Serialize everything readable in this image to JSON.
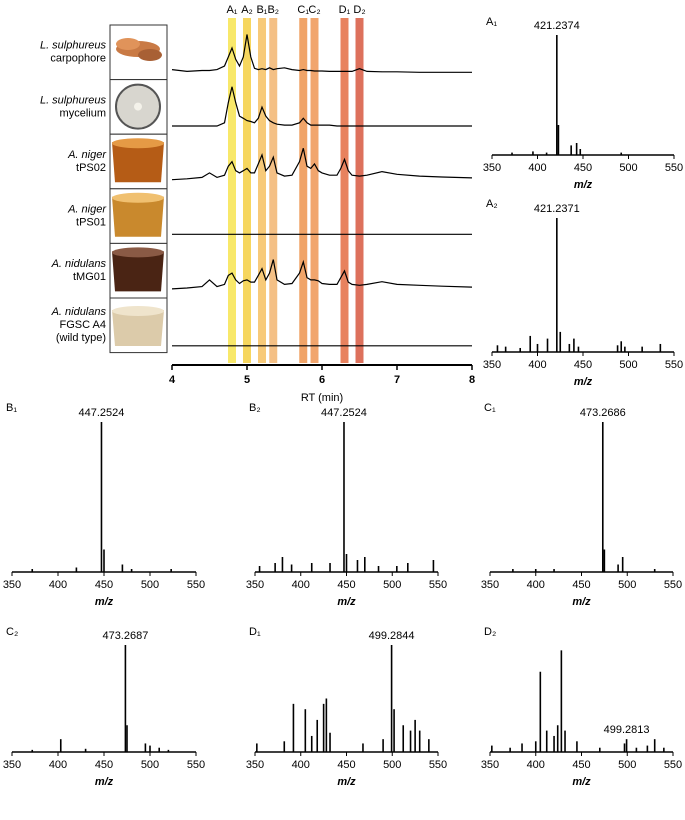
{
  "chart_data": [
    {
      "type": "line",
      "xlabel": "RT (min)",
      "x": [
        4.0,
        4.2,
        4.4,
        4.5,
        4.6,
        4.7,
        4.75,
        4.8,
        4.85,
        4.9,
        4.95,
        5.0,
        5.05,
        5.1,
        5.15,
        5.2,
        5.25,
        5.3,
        5.35,
        5.4,
        5.5,
        5.6,
        5.7,
        5.75,
        5.8,
        5.85,
        5.9,
        5.95,
        6.0,
        6.1,
        6.2,
        6.25,
        6.3,
        6.35,
        6.4,
        6.5,
        6.6,
        6.8,
        7.0,
        7.3,
        7.6,
        8.0
      ],
      "xlim": [
        4,
        8
      ],
      "xticks": [
        4,
        5,
        6,
        7,
        8
      ],
      "ylim": [
        0,
        100
      ],
      "color": "#000000",
      "bands": [
        {
          "label": "A₁",
          "x": 4.8,
          "color": "#f7e65a"
        },
        {
          "label": "A₂",
          "x": 5.0,
          "color": "#f5d24c"
        },
        {
          "label": "B₁",
          "x": 5.2,
          "color": "#f6c46a"
        },
        {
          "label": "B₂",
          "x": 5.35,
          "color": "#f3b978"
        },
        {
          "label": "C₁",
          "x": 5.75,
          "color": "#ee9a58"
        },
        {
          "label": "C₂",
          "x": 5.9,
          "color": "#f09b5d"
        },
        {
          "label": "D₁",
          "x": 6.3,
          "color": "#e5744d"
        },
        {
          "label": "D₂",
          "x": 6.5,
          "color": "#d9624a"
        }
      ],
      "series": [
        {
          "species": "L. sulphureus",
          "strain": [
            "carpophore"
          ],
          "values": [
            12,
            8,
            10,
            10,
            12,
            20,
            40,
            60,
            35,
            20,
            40,
            90,
            40,
            15,
            12,
            14,
            12,
            16,
            12,
            14,
            16,
            12,
            10,
            12,
            10,
            10,
            9,
            9,
            9,
            8,
            8,
            8,
            8,
            8,
            8,
            14,
            8,
            7,
            7,
            6,
            6,
            6
          ]
        },
        {
          "species": "L. sulphureus",
          "strain": [
            "mycelium"
          ],
          "values": [
            8,
            8,
            8,
            8,
            8,
            15,
            60,
            95,
            60,
            30,
            25,
            20,
            18,
            15,
            25,
            50,
            30,
            20,
            15,
            12,
            10,
            10,
            15,
            25,
            15,
            10,
            10,
            10,
            10,
            10,
            8,
            8,
            8,
            8,
            8,
            8,
            8,
            8,
            8,
            8,
            8,
            8
          ]
        },
        {
          "species": "A. niger",
          "strain": [
            "tPS02"
          ],
          "values": [
            10,
            12,
            15,
            25,
            15,
            20,
            40,
            50,
            30,
            25,
            30,
            35,
            25,
            25,
            45,
            65,
            30,
            40,
            60,
            25,
            18,
            20,
            50,
            80,
            40,
            35,
            45,
            30,
            25,
            20,
            20,
            35,
            55,
            30,
            20,
            18,
            20,
            28,
            22,
            18,
            16,
            14
          ]
        },
        {
          "species": "A. niger",
          "strain": [
            "tPS01"
          ],
          "values": [
            10,
            10,
            10,
            10,
            10,
            10,
            10,
            10,
            10,
            10,
            10,
            10,
            10,
            10,
            10,
            10,
            10,
            10,
            10,
            10,
            10,
            10,
            10,
            10,
            10,
            10,
            10,
            10,
            10,
            10,
            10,
            10,
            10,
            10,
            10,
            10,
            10,
            10,
            10,
            10,
            10,
            10
          ]
        },
        {
          "species": "A. nidulans",
          "strain": [
            "tMG01"
          ],
          "values": [
            10,
            12,
            15,
            30,
            15,
            20,
            40,
            45,
            30,
            22,
            28,
            30,
            25,
            25,
            40,
            55,
            30,
            45,
            75,
            30,
            20,
            22,
            45,
            70,
            35,
            30,
            30,
            28,
            22,
            20,
            20,
            35,
            50,
            25,
            20,
            18,
            20,
            26,
            20,
            18,
            16,
            14
          ]
        },
        {
          "species": "A. nidulans",
          "strain": [
            "FGSC A4",
            "(wild type)"
          ],
          "values": [
            5,
            5,
            5,
            5,
            5,
            5,
            5,
            5,
            5,
            5,
            5,
            5,
            5,
            5,
            5,
            5,
            5,
            5,
            5,
            5,
            5,
            5,
            5,
            5,
            5,
            5,
            5,
            5,
            5,
            5,
            5,
            5,
            5,
            5,
            5,
            5,
            5,
            5,
            5,
            5,
            5,
            5
          ]
        }
      ]
    },
    {
      "type": "stem",
      "label": "A₁",
      "annotation": 421.2374,
      "xlabel": "m/z",
      "xlim": [
        350,
        550
      ],
      "xticks": [
        350,
        400,
        450,
        500,
        550
      ],
      "ylim": [
        0,
        100
      ],
      "color": "#000000",
      "x": [
        372,
        395,
        410,
        421.2374,
        423,
        437,
        443,
        447,
        492
      ],
      "values": [
        2,
        3,
        2,
        100,
        25,
        8,
        10,
        5,
        2
      ]
    },
    {
      "type": "stem",
      "label": "A₂",
      "annotation": 421.2371,
      "xlabel": "m/z",
      "xlim": [
        350,
        550
      ],
      "xticks": [
        350,
        400,
        450,
        500,
        550
      ],
      "ylim": [
        0,
        100
      ],
      "color": "#000000",
      "x": [
        356,
        365,
        381,
        392,
        400,
        411,
        421.2371,
        425,
        435,
        440,
        445,
        488,
        492,
        496,
        515,
        535
      ],
      "values": [
        5,
        4,
        3,
        12,
        6,
        10,
        100,
        15,
        6,
        10,
        4,
        5,
        8,
        4,
        4,
        6
      ]
    },
    {
      "type": "stem",
      "label": "B₁",
      "annotation": 447.2524,
      "xlabel": "m/z",
      "xlim": [
        350,
        550
      ],
      "xticks": [
        350,
        400,
        450,
        500,
        550
      ],
      "ylim": [
        0,
        100
      ],
      "color": "#000000",
      "x": [
        372,
        420,
        447.2524,
        450,
        470,
        480,
        523
      ],
      "values": [
        2,
        3,
        100,
        15,
        5,
        2,
        2
      ]
    },
    {
      "type": "stem",
      "label": "B₂",
      "annotation": 447.2524,
      "xlabel": "m/z",
      "xlim": [
        350,
        550
      ],
      "xticks": [
        350,
        400,
        450,
        500,
        550
      ],
      "ylim": [
        0,
        100
      ],
      "color": "#000000",
      "x": [
        355,
        372,
        380,
        390,
        412,
        432,
        447.2524,
        450,
        462,
        470,
        485,
        505,
        517,
        545
      ],
      "values": [
        4,
        6,
        10,
        5,
        6,
        6,
        100,
        12,
        8,
        10,
        4,
        4,
        6,
        8
      ]
    },
    {
      "type": "stem",
      "label": "C₁",
      "annotation": 473.2686,
      "xlabel": "m/z",
      "xlim": [
        350,
        550
      ],
      "xticks": [
        350,
        400,
        450,
        500,
        550
      ],
      "ylim": [
        0,
        100
      ],
      "color": "#000000",
      "x": [
        375,
        400,
        420,
        473.2686,
        475,
        490,
        495,
        530
      ],
      "values": [
        2,
        2,
        2,
        100,
        15,
        5,
        10,
        2
      ]
    },
    {
      "type": "stem",
      "label": "C₂",
      "annotation": 473.2687,
      "xlabel": "m/z",
      "xlim": [
        350,
        550
      ],
      "xticks": [
        350,
        400,
        450,
        500,
        550
      ],
      "ylim": [
        0,
        100
      ],
      "color": "#000000",
      "x": [
        372,
        403,
        430,
        473.2687,
        475,
        495,
        500,
        510,
        520
      ],
      "values": [
        2,
        12,
        3,
        100,
        25,
        8,
        6,
        4,
        2
      ]
    },
    {
      "type": "stem",
      "label": "D₁",
      "annotation": 499.2844,
      "xlabel": "m/z",
      "xlim": [
        350,
        550
      ],
      "xticks": [
        350,
        400,
        450,
        500,
        550
      ],
      "ylim": [
        0,
        100
      ],
      "color": "#000000",
      "x": [
        352,
        382,
        392,
        405,
        412,
        418,
        425,
        428,
        432,
        468,
        490,
        499.2844,
        502,
        512,
        520,
        525,
        530,
        540
      ],
      "values": [
        8,
        10,
        45,
        40,
        15,
        30,
        45,
        50,
        18,
        8,
        12,
        100,
        40,
        25,
        20,
        30,
        20,
        12
      ]
    },
    {
      "type": "stem",
      "label": "D₂",
      "annotation": 499.2813,
      "xlabel": "m/z",
      "xlim": [
        350,
        550
      ],
      "xticks": [
        350,
        400,
        450,
        500,
        550
      ],
      "ylim": [
        0,
        100
      ],
      "color": "#000000",
      "x": [
        352,
        372,
        385,
        400,
        405,
        412,
        420,
        424,
        428,
        432,
        445,
        470,
        497,
        499.2813,
        510,
        522,
        530,
        540
      ],
      "values": [
        6,
        4,
        8,
        10,
        75,
        20,
        15,
        25,
        95,
        20,
        10,
        4,
        8,
        12,
        4,
        6,
        12,
        4
      ]
    }
  ]
}
